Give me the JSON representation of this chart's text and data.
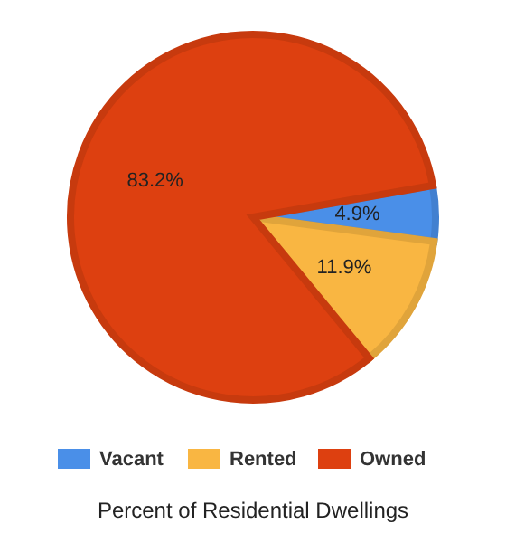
{
  "chart_data": {
    "type": "pie",
    "title": "Percent of Residential Dwellings",
    "categories": [
      "Vacant",
      "Rented",
      "Owned"
    ],
    "values": [
      4.9,
      11.9,
      83.2
    ],
    "colors": [
      "#4a8fe8",
      "#f9b642",
      "#dd4010"
    ],
    "value_labels": [
      "4.9%",
      "11.9%",
      "83.2%"
    ],
    "legend": "bottom"
  }
}
